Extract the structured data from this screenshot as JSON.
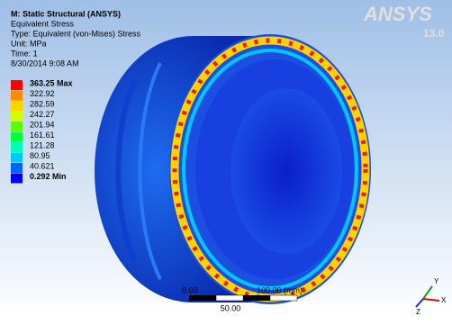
{
  "header": {
    "title": "M: Static Structural (ANSYS)",
    "lines": [
      "Equivalent Stress",
      "Type: Equivalent (von-Mises) Stress",
      "Unit: MPa",
      "Time: 1",
      "8/30/2014 9:08 AM"
    ]
  },
  "logo": {
    "name": "ANSYS",
    "version": "13.0"
  },
  "legend": [
    {
      "label": "363.25 Max",
      "color": "#ff0000"
    },
    {
      "label": "322.92",
      "color": "#ff8c00"
    },
    {
      "label": "282.59",
      "color": "#ffd200"
    },
    {
      "label": "242.27",
      "color": "#d2ff00"
    },
    {
      "label": "201.94",
      "color": "#5aff00"
    },
    {
      "label": "161.61",
      "color": "#00ff3c"
    },
    {
      "label": "121.28",
      "color": "#00ffb4"
    },
    {
      "label": "80.95",
      "color": "#00c8ff"
    },
    {
      "label": "40.621",
      "color": "#0064ff"
    },
    {
      "label": "0.292 Min",
      "color": "#0000ff"
    }
  ],
  "scale_bar": {
    "start": "0.00",
    "end": "100.00 (mm)",
    "mid": "50.00"
  },
  "triad": {
    "y": "Y",
    "x": "X",
    "z": "Z"
  }
}
